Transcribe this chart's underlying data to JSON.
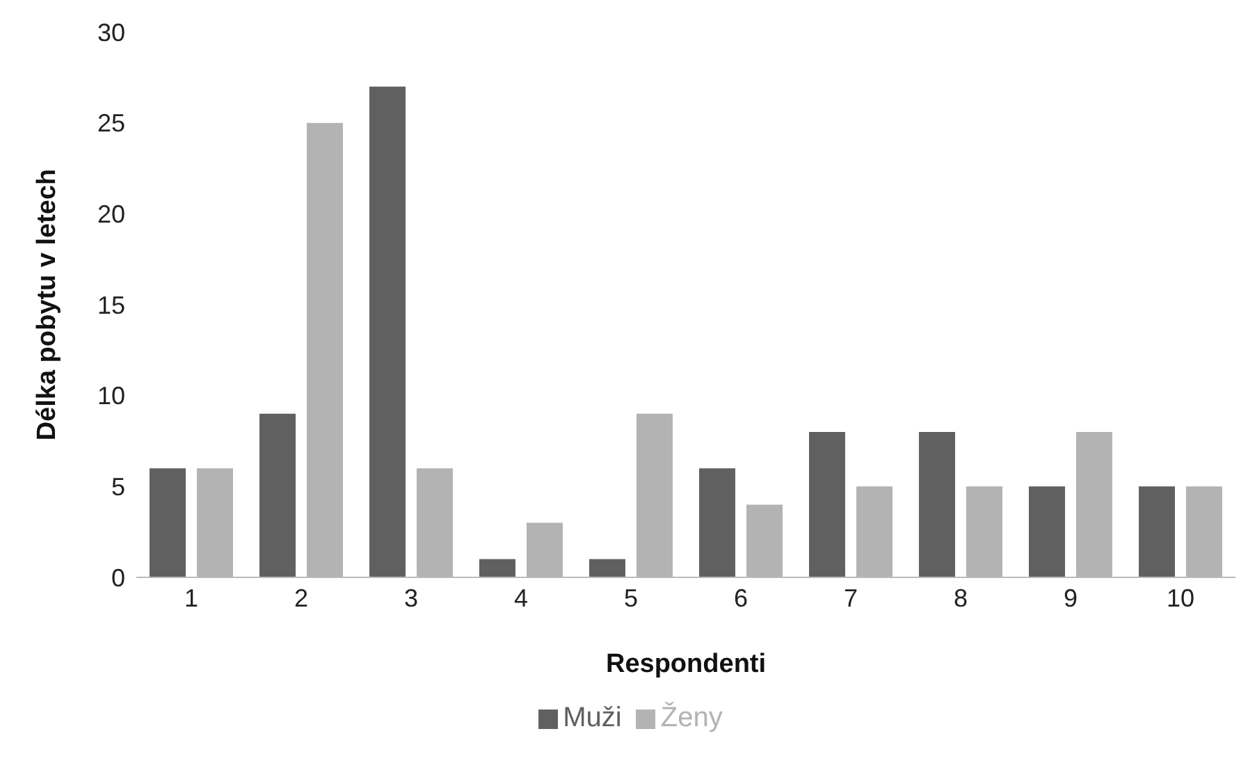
{
  "chart_data": {
    "type": "bar",
    "xlabel": "Respondenti",
    "ylabel": "Délka pobytu v letech",
    "categories": [
      "1",
      "2",
      "3",
      "4",
      "5",
      "6",
      "7",
      "8",
      "9",
      "10"
    ],
    "series": [
      {
        "name": "Muži",
        "color": "#606060",
        "values": [
          6,
          9,
          27,
          1,
          1,
          6,
          8,
          8,
          5,
          5
        ]
      },
      {
        "name": "Ženy",
        "color": "#b3b3b3",
        "values": [
          6,
          25,
          6,
          3,
          9,
          4,
          5,
          5,
          8,
          5
        ]
      }
    ],
    "ylim": [
      0,
      30
    ],
    "yticks": [
      0,
      5,
      10,
      15,
      20,
      25,
      30
    ],
    "grid": false,
    "legend": "bottom"
  }
}
